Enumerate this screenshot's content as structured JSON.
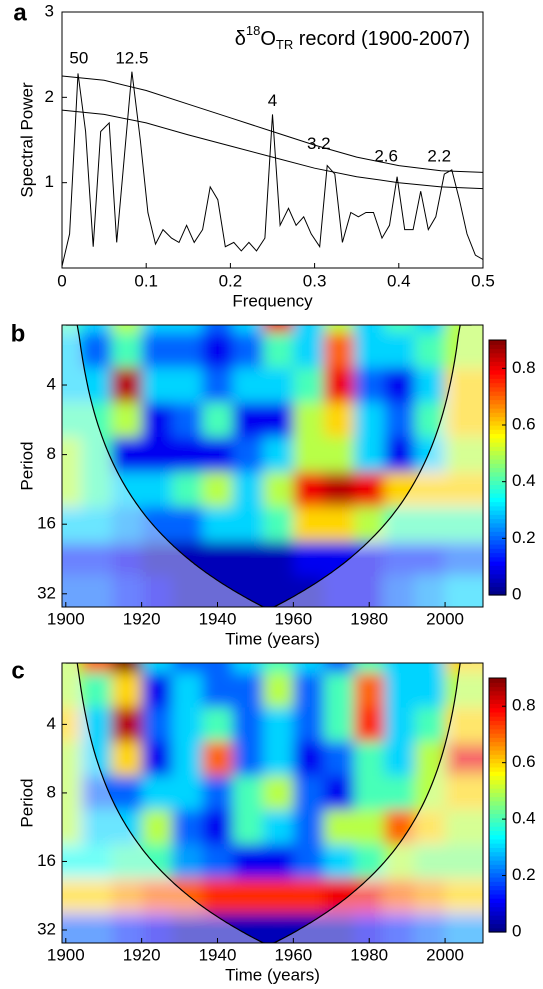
{
  "chart_data": [
    {
      "type": "line",
      "panel_label": "a",
      "title_parts": [
        "δ",
        "18",
        "O",
        "TR",
        " record (1900-2007)"
      ],
      "x_label": "Frequency",
      "y_label": "Spectral Power",
      "color": "#000000",
      "xlim": [
        0,
        0.5
      ],
      "xticks": [
        0,
        0.1,
        0.2,
        0.3,
        0.4,
        0.5
      ],
      "ylim": [
        0,
        3
      ],
      "yticks": [
        1,
        2,
        3
      ],
      "x": [
        0,
        0.009,
        0.019,
        0.028,
        0.037,
        0.046,
        0.056,
        0.065,
        0.074,
        0.083,
        0.093,
        0.102,
        0.111,
        0.12,
        0.13,
        0.139,
        0.148,
        0.157,
        0.167,
        0.176,
        0.185,
        0.194,
        0.204,
        0.213,
        0.222,
        0.231,
        0.241,
        0.25,
        0.259,
        0.269,
        0.278,
        0.287,
        0.296,
        0.306,
        0.315,
        0.324,
        0.333,
        0.343,
        0.352,
        0.361,
        0.37,
        0.38,
        0.389,
        0.398,
        0.407,
        0.417,
        0.426,
        0.435,
        0.444,
        0.454,
        0.463,
        0.472,
        0.481,
        0.491,
        0.5
      ],
      "values": [
        0.02,
        0.4,
        2.28,
        1.6,
        0.25,
        1.6,
        1.7,
        0.3,
        1.3,
        2.3,
        1.5,
        0.65,
        0.28,
        0.45,
        0.35,
        0.3,
        0.5,
        0.3,
        0.45,
        0.95,
        0.8,
        0.25,
        0.3,
        0.2,
        0.3,
        0.2,
        0.35,
        1.8,
        0.5,
        0.7,
        0.5,
        0.6,
        0.4,
        0.25,
        1.2,
        1.1,
        0.3,
        0.65,
        0.6,
        0.65,
        0.65,
        0.35,
        0.5,
        1.07,
        0.45,
        0.45,
        0.9,
        0.45,
        0.6,
        1.1,
        1.15,
        0.8,
        0.4,
        0.15,
        0.1
      ],
      "curves": [
        {
          "x": [
            0,
            0.05,
            0.1,
            0.15,
            0.2,
            0.25,
            0.3,
            0.35,
            0.4,
            0.45,
            0.5
          ],
          "values": [
            2.25,
            2.2,
            2.08,
            1.92,
            1.76,
            1.6,
            1.44,
            1.3,
            1.2,
            1.14,
            1.12
          ]
        },
        {
          "x": [
            0,
            0.05,
            0.1,
            0.15,
            0.2,
            0.25,
            0.3,
            0.35,
            0.4,
            0.45,
            0.5
          ],
          "values": [
            1.85,
            1.8,
            1.7,
            1.56,
            1.43,
            1.3,
            1.17,
            1.07,
            1.0,
            0.95,
            0.93
          ]
        }
      ],
      "annotations": [
        {
          "text": "50",
          "x": 0.02,
          "y": 2.45
        },
        {
          "text": "12.5",
          "x": 0.083,
          "y": 2.45
        },
        {
          "text": "4",
          "x": 0.25,
          "y": 1.95
        },
        {
          "text": "3.2",
          "x": 0.305,
          "y": 1.45
        },
        {
          "text": "2.6",
          "x": 0.385,
          "y": 1.3
        },
        {
          "text": "2.2",
          "x": 0.448,
          "y": 1.3
        }
      ]
    },
    {
      "type": "wavelet",
      "panel_label": "b",
      "x_label": "Time (years)",
      "y_label": "Period",
      "xlim": [
        1899,
        2010
      ],
      "xticks": [
        1900,
        1920,
        1940,
        1960,
        1980,
        2000
      ],
      "ylim": [
        2.2,
        36.5
      ],
      "yticks": [
        4,
        8,
        16,
        32
      ],
      "log_scale_y": true,
      "colormap": "jet",
      "clim": [
        0,
        0.9
      ],
      "colorbar_ticks": [
        0,
        0.2,
        0.4,
        0.6,
        0.8
      ],
      "x": [
        1900,
        1908,
        1916,
        1924,
        1932,
        1940,
        1948,
        1956,
        1964,
        1972,
        1980,
        1988,
        1996,
        2004
      ],
      "periods": [
        2,
        2.83,
        4,
        5.66,
        8,
        11.3,
        16,
        22.6,
        32
      ],
      "values": [
        [
          0.4,
          0.3,
          0.5,
          0.3,
          0.3,
          0.2,
          0.3,
          0.8,
          0.3,
          0.5,
          0.3,
          0.4,
          0.3,
          0.5
        ],
        [
          0.3,
          0.2,
          0.4,
          0.2,
          0.2,
          0.1,
          0.2,
          0.4,
          0.3,
          0.7,
          0.3,
          0.3,
          0.4,
          0.5
        ],
        [
          0.3,
          0.3,
          0.85,
          0.3,
          0.3,
          0.2,
          0.3,
          0.3,
          0.4,
          0.8,
          0.2,
          0.1,
          0.3,
          0.6
        ],
        [
          0.4,
          0.4,
          0.5,
          0.1,
          0.2,
          0.4,
          0.1,
          0.1,
          0.5,
          0.6,
          0.3,
          0.2,
          0.4,
          0.6
        ],
        [
          0.5,
          0.4,
          0.1,
          0.1,
          0.1,
          0.1,
          0.2,
          0.3,
          0.5,
          0.5,
          0.3,
          0.1,
          0.3,
          0.5
        ],
        [
          0.5,
          0.4,
          0.3,
          0.3,
          0.4,
          0.5,
          0.3,
          0.5,
          0.8,
          0.85,
          0.8,
          0.6,
          0.6,
          0.6
        ],
        [
          0.3,
          0.3,
          0.25,
          0.2,
          0.2,
          0.3,
          0.3,
          0.4,
          0.6,
          0.6,
          0.5,
          0.4,
          0.4,
          0.4
        ],
        [
          0.15,
          0.15,
          0.1,
          0.05,
          0.05,
          0.05,
          0.05,
          0.05,
          0.1,
          0.1,
          0.1,
          0.15,
          0.15,
          0.2
        ],
        [
          0.2,
          0.2,
          0.15,
          0.1,
          0.05,
          0.05,
          0.05,
          0.05,
          0.05,
          0.1,
          0.1,
          0.2,
          0.25,
          0.3
        ]
      ]
    },
    {
      "type": "wavelet",
      "panel_label": "c",
      "x_label": "Time (years)",
      "y_label": "Period",
      "xlim": [
        1899,
        2010
      ],
      "xticks": [
        1900,
        1920,
        1940,
        1960,
        1980,
        2000
      ],
      "ylim": [
        2.15,
        36.5
      ],
      "yticks": [
        4,
        8,
        16,
        32
      ],
      "log_scale_y": true,
      "colormap": "jet",
      "clim": [
        0,
        0.9
      ],
      "colorbar_ticks": [
        0,
        0.2,
        0.4,
        0.6,
        0.8
      ],
      "x": [
        1900,
        1908,
        1916,
        1924,
        1932,
        1940,
        1948,
        1956,
        1964,
        1972,
        1980,
        1988,
        1996,
        2004
      ],
      "periods": [
        2,
        2.83,
        4,
        5.66,
        8,
        11.3,
        16,
        22.6,
        32
      ],
      "values": [
        [
          0.5,
          0.7,
          0.9,
          0.3,
          0.2,
          0.2,
          0.3,
          0.4,
          0.3,
          0.2,
          0.4,
          0.3,
          0.3,
          0.6
        ],
        [
          0.5,
          0.4,
          0.6,
          0.1,
          0.3,
          0.2,
          0.2,
          0.5,
          0.2,
          0.4,
          0.7,
          0.3,
          0.3,
          0.5
        ],
        [
          0.6,
          0.3,
          0.85,
          0.2,
          0.3,
          0.4,
          0.2,
          0.3,
          0.2,
          0.4,
          0.75,
          0.3,
          0.4,
          0.6
        ],
        [
          0.5,
          0.3,
          0.6,
          0.1,
          0.3,
          0.7,
          0.2,
          0.3,
          0.1,
          0.2,
          0.4,
          0.3,
          0.5,
          0.8
        ],
        [
          0.5,
          0.2,
          0.2,
          0.3,
          0.3,
          0.2,
          0.4,
          0.5,
          0.2,
          0.1,
          0.4,
          0.4,
          0.5,
          0.6
        ],
        [
          0.5,
          0.3,
          0.3,
          0.5,
          0.2,
          0.1,
          0.4,
          0.3,
          0.2,
          0.5,
          0.5,
          0.7,
          0.6,
          0.5
        ],
        [
          0.35,
          0.35,
          0.4,
          0.4,
          0.25,
          0.2,
          0.1,
          0.1,
          0.2,
          0.3,
          0.4,
          0.5,
          0.45,
          0.45
        ],
        [
          0.6,
          0.6,
          0.65,
          0.7,
          0.7,
          0.75,
          0.75,
          0.75,
          0.75,
          0.8,
          0.8,
          0.7,
          0.65,
          0.6
        ],
        [
          0.2,
          0.2,
          0.15,
          0.1,
          0.05,
          0.05,
          0.05,
          0.05,
          0.05,
          0.05,
          0.1,
          0.15,
          0.2,
          0.25
        ]
      ]
    }
  ]
}
